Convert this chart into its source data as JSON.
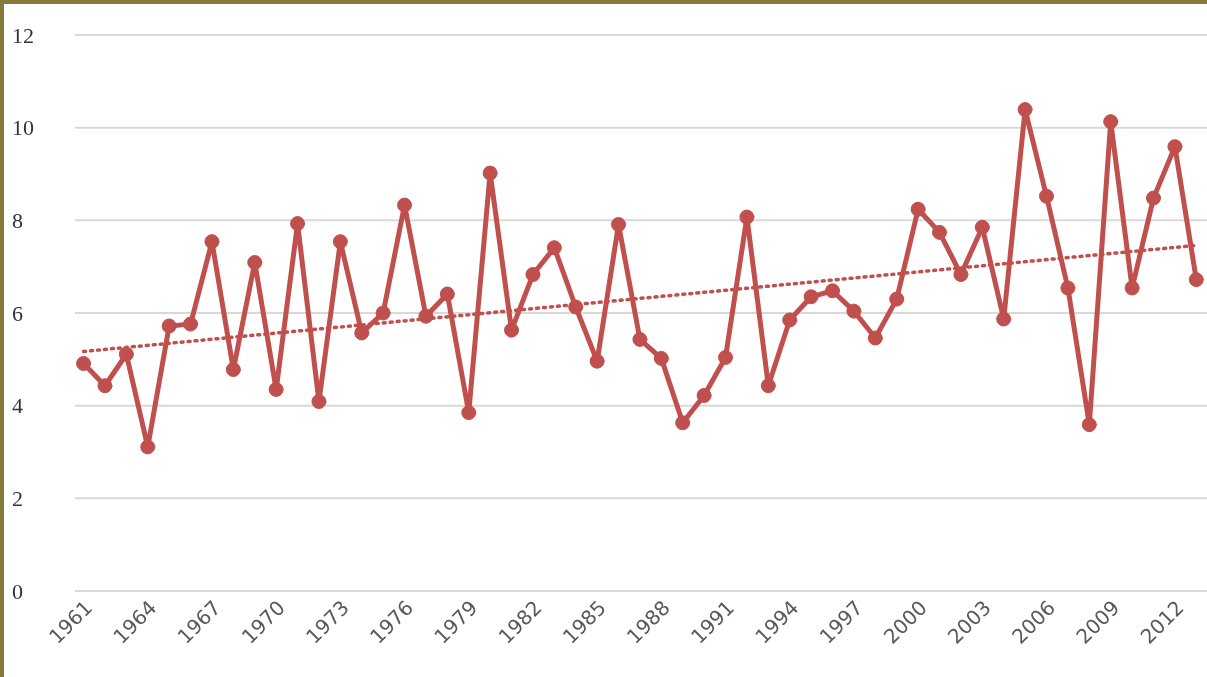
{
  "chart_data": {
    "type": "line",
    "x": [
      1961,
      1962,
      1963,
      1964,
      1965,
      1966,
      1967,
      1968,
      1969,
      1970,
      1971,
      1972,
      1973,
      1974,
      1975,
      1976,
      1977,
      1978,
      1979,
      1980,
      1981,
      1982,
      1983,
      1984,
      1985,
      1986,
      1987,
      1988,
      1989,
      1990,
      1991,
      1992,
      1993,
      1994,
      1995,
      1996,
      1997,
      1998,
      1999,
      2000,
      2001,
      2002,
      2003,
      2004,
      2005,
      2006,
      2007,
      2008,
      2009,
      2010,
      2011,
      2012,
      2013
    ],
    "xlim": [
      1960.6,
      2013.5
    ],
    "xticks": [
      1961,
      1964,
      1967,
      1970,
      1973,
      1976,
      1979,
      1982,
      1985,
      1988,
      1991,
      1994,
      1997,
      2000,
      2003,
      2006,
      2009,
      2012
    ],
    "ylim": [
      0,
      12
    ],
    "yticks": [
      0,
      2,
      4,
      6,
      8,
      10,
      12
    ],
    "grid": "y",
    "marker": "circle",
    "line_style": "solid",
    "series": [
      {
        "color": "#c0504d",
        "values": [
          4.91,
          4.43,
          5.11,
          3.11,
          5.72,
          5.76,
          7.54,
          4.78,
          7.09,
          4.35,
          7.93,
          4.09,
          7.54,
          5.57,
          6.0,
          8.33,
          5.93,
          6.41,
          3.85,
          9.02,
          5.63,
          6.83,
          7.41,
          6.13,
          4.96,
          7.91,
          5.43,
          5.02,
          3.63,
          4.22,
          5.04,
          8.07,
          4.43,
          5.85,
          6.35,
          6.48,
          6.04,
          5.46,
          6.3,
          8.24,
          7.74,
          6.83,
          7.85,
          5.87,
          10.39,
          8.52,
          6.54,
          3.59,
          10.13,
          6.54,
          8.48,
          9.59,
          6.72
        ]
      },
      {
        "type": "line",
        "x": [
          1961,
          2013
        ],
        "values": [
          5.17,
          7.46
        ],
        "color": "#c0504d",
        "line_style": "dotted",
        "marker": "none"
      }
    ]
  }
}
